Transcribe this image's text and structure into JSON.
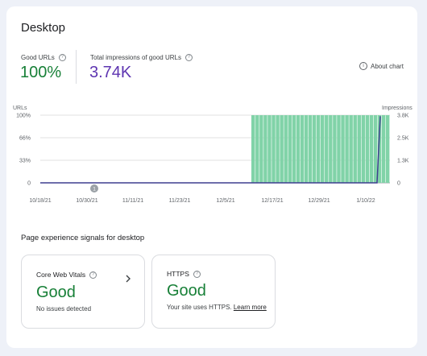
{
  "header": {
    "title": "Desktop"
  },
  "metrics": {
    "good_urls_label": "Good URLs",
    "good_urls_value": "100%",
    "good_urls_color": "#188038",
    "impressions_label": "Total impressions of good URLs",
    "impressions_value": "3.74K",
    "impressions_color": "#5e35b1"
  },
  "about_chart": {
    "label": "About chart",
    "icon": "info-icon"
  },
  "chart_data": {
    "type": "bar",
    "left_axis_label": "URLs",
    "right_axis_label": "Impressions",
    "left_ticks": [
      "100%",
      "66%",
      "33%",
      "0"
    ],
    "right_ticks": [
      "3.8K",
      "2.5K",
      "1.3K",
      "0"
    ],
    "x_tick_labels": [
      "10/18/21",
      "10/30/21",
      "11/11/21",
      "11/23/21",
      "12/5/21",
      "12/17/21",
      "12/29/21",
      "1/10/22"
    ],
    "annotation": "1",
    "bar_color": "#81d3a8",
    "line_color": "#3f3f8f",
    "series": [
      {
        "axis": "left",
        "kind": "bar",
        "unit": "%",
        "zero_until": "12/10/21",
        "value_after": 100
      },
      {
        "axis": "right",
        "kind": "line",
        "unit": "impressions",
        "zero_until": "1/14/22",
        "end_value": 3740
      }
    ],
    "ylim_left": [
      0,
      100
    ],
    "ylim_right": [
      0,
      3800
    ]
  },
  "signals": {
    "title": "Page experience signals for desktop",
    "core_web_vitals": {
      "label": "Core Web Vitals",
      "status": "Good",
      "description": "No issues detected"
    },
    "https": {
      "label": "HTTPS",
      "status": "Good",
      "description": "Your site uses HTTPS.",
      "link": "Learn more"
    }
  }
}
